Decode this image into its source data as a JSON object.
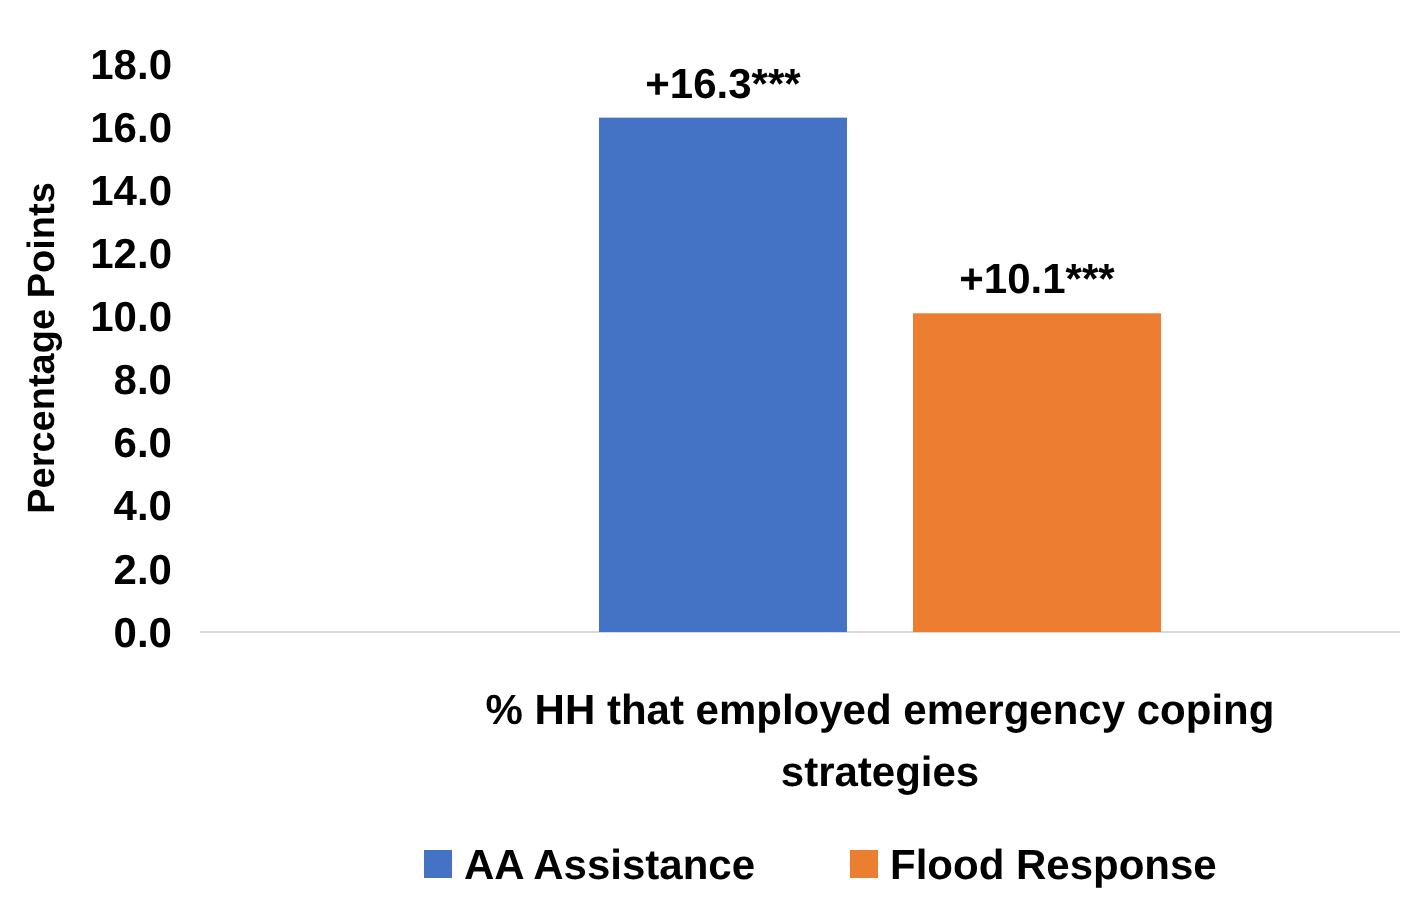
{
  "chart_data": {
    "type": "bar",
    "categories": [
      "% HH that employed emergency coping strategies"
    ],
    "ylabel": "Percentage Points",
    "ylim": [
      0,
      18
    ],
    "yticks": [
      {
        "value": 0,
        "label": "0.0"
      },
      {
        "value": 2,
        "label": "2.0"
      },
      {
        "value": 4,
        "label": "4.0"
      },
      {
        "value": 6,
        "label": "6.0"
      },
      {
        "value": 8,
        "label": "8.0"
      },
      {
        "value": 10,
        "label": "10.0"
      },
      {
        "value": 12,
        "label": "12.0"
      },
      {
        "value": 14,
        "label": "14.0"
      },
      {
        "value": 16,
        "label": "16.0"
      },
      {
        "value": 18,
        "label": "18.0"
      }
    ],
    "grid": false,
    "legend": "bottom",
    "series": [
      {
        "name": "AA Assistance",
        "color": "#4472c4",
        "values": [
          16.3
        ],
        "value_labels": [
          "+16.3***"
        ]
      },
      {
        "name": "Flood Response",
        "color": "#ed7d31",
        "values": [
          10.1
        ],
        "value_labels": [
          "+10.1***"
        ]
      }
    ]
  }
}
